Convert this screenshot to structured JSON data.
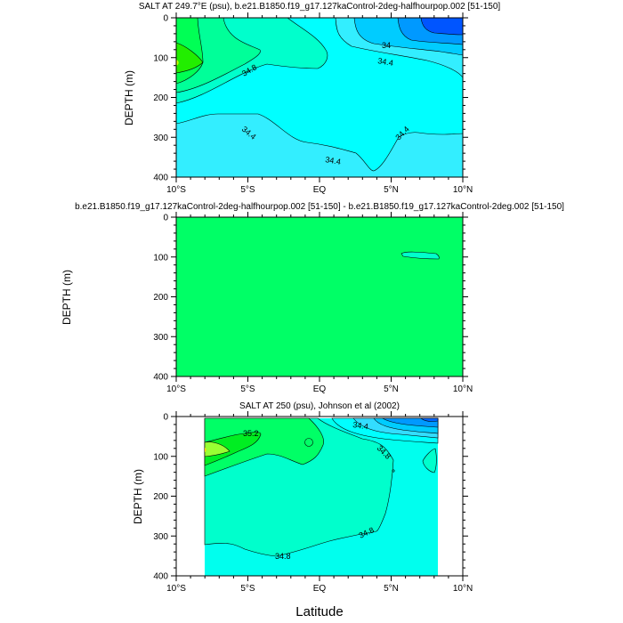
{
  "chart_data": [
    {
      "type": "contour",
      "title": "SALT AT 249.7°E (psu), b.e21.B1850.f19_g17.127kaControl-2deg-halfhourpop.002 [51-150]",
      "xlabel": "",
      "ylabel": "DEPTH (m)",
      "xlim": [
        -10,
        10
      ],
      "ylim": [
        400,
        0
      ],
      "x_ticks": [
        "10°S",
        "5°S",
        "EQ",
        "5°N",
        "10°N"
      ],
      "y_ticks": [
        "0",
        "100",
        "200",
        "300",
        "400"
      ],
      "contour_labels": [
        "34.8",
        "34",
        "34.4",
        "34.4",
        "34.4",
        "34.4"
      ],
      "colors": [
        "#33eeff",
        "#00ffff",
        "#00ffcc",
        "#00ff99",
        "#00ff55",
        "#22ee00",
        "#00ccff",
        "#0099ff",
        "#0055ff"
      ]
    },
    {
      "type": "contour",
      "title": "b.e21.B1850.f19_g17.127kaControl-2deg-halfhourpop.002 [51-150] - b.e21.B1850.f19_g17.127kaControl-2deg.002 [51-150]",
      "xlabel": "",
      "ylabel": "DEPTH (m)",
      "xlim": [
        -10,
        10
      ],
      "ylim": [
        400,
        0
      ],
      "x_ticks": [
        "10°S",
        "5°S",
        "EQ",
        "5°N",
        "10°N"
      ],
      "y_ticks": [
        "0",
        "100",
        "200",
        "300",
        "400"
      ],
      "contour_labels": [],
      "colors": [
        "#00ff66",
        "#00ffcc"
      ]
    },
    {
      "type": "contour",
      "title": "SALT AT 250 (psu), Johnson et al (2002)",
      "xlabel": "Latitude",
      "ylabel": "DEPTH (m)",
      "xlim": [
        -10,
        10
      ],
      "ylim": [
        400,
        0
      ],
      "x_ticks": [
        "10°S",
        "5°S",
        "EQ",
        "5°N",
        "10°N"
      ],
      "y_ticks": [
        "0",
        "100",
        "200",
        "300",
        "400"
      ],
      "contour_labels": [
        "35.2",
        "34.4",
        "34.8",
        "34.8",
        "34.8"
      ],
      "colors": [
        "#00ffee",
        "#00ffcc",
        "#00ff66",
        "#00ee22",
        "#99ff33",
        "#00ffff",
        "#33ddff",
        "#00ccff",
        "#0099ff",
        "#0066ff"
      ]
    }
  ]
}
